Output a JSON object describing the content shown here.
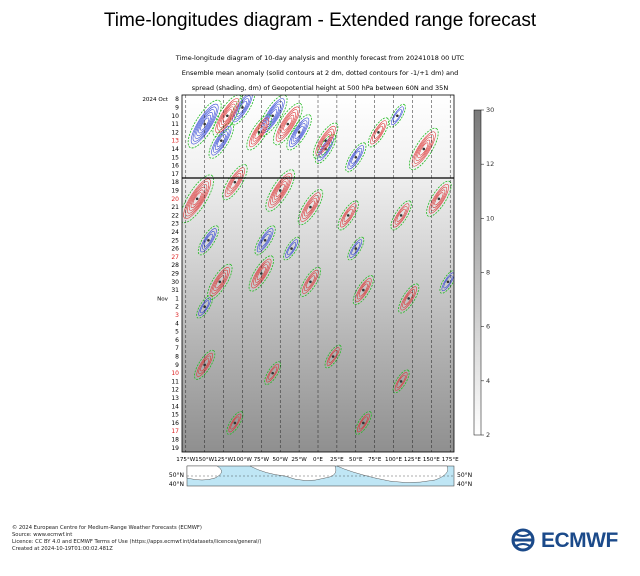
{
  "title": "Time-longitudes diagram - Extended range forecast",
  "subtitle_lines": [
    "Time-longitude diagram of 10-day analysis and monthly forecast from 20241018 00 UTC",
    "Ensemble mean anomaly (solid contours at 2 dm, dotted contours for -1/+1 dm) and",
    "spread (shading, dm) of Geopotential height at 500 hPa between 60N and 35N"
  ],
  "footer_lines": [
    "© 2024 European Centre for Medium-Range Weather Forecasts (ECMWF)",
    "Source: www.ecmwf.int",
    "Licence: CC BY 4.0 and ECMWF Terms of Use (https://apps.ecmwf.int/datasets/licences/general/)",
    "Created at 2024-10-19T01:00:02.481Z"
  ],
  "logo_text": "ECMWF",
  "colors": {
    "positive": "#dd3030",
    "negative": "#2a3fd6",
    "dotted": "#22bb22",
    "analysis_line": "#000000",
    "sunday": "#dd2020",
    "ocean": "#bfe6f5"
  },
  "chart_data": {
    "type": "heatmap",
    "x_ticks": [
      "175°W",
      "150°W",
      "125°W",
      "100°W",
      "75°W",
      "50°W",
      "25°W",
      "0°E",
      "25°E",
      "50°E",
      "75°E",
      "100°E",
      "125°E",
      "150°E",
      "175°E"
    ],
    "x_values": [
      -175,
      -150,
      -125,
      -100,
      -75,
      -50,
      -25,
      0,
      25,
      50,
      75,
      100,
      125,
      150,
      175
    ],
    "y_month_labels": [
      {
        "text": "2024 Oct",
        "day": 8
      },
      {
        "text": "Nov",
        "day": 1
      }
    ],
    "y_days": [
      8,
      9,
      10,
      11,
      12,
      13,
      14,
      15,
      16,
      17,
      18,
      19,
      20,
      21,
      22,
      23,
      24,
      25,
      26,
      27,
      28,
      29,
      30,
      31,
      1,
      2,
      3,
      4,
      5,
      6,
      7,
      8,
      9,
      10,
      11,
      12,
      13,
      14,
      15,
      16,
      17,
      18,
      19
    ],
    "y_sunday_days": [
      13,
      20,
      27,
      3,
      10,
      17
    ],
    "analysis_end_index": 10,
    "colorbar": {
      "ticks": [
        30,
        12,
        10,
        8,
        6,
        4,
        2
      ]
    },
    "map_lat_labels": [
      "50°N",
      "40°N"
    ],
    "anomaly_features": [
      {
        "sign": "negative",
        "lon": -150,
        "day_index": 3,
        "strength": 12
      },
      {
        "sign": "negative",
        "lon": -128,
        "day_index": 5,
        "strength": 8
      },
      {
        "sign": "negative",
        "lon": -100,
        "day_index": 1,
        "strength": 8
      },
      {
        "sign": "negative",
        "lon": -60,
        "day_index": 2,
        "strength": 10
      },
      {
        "sign": "negative",
        "lon": -25,
        "day_index": 4,
        "strength": 8
      },
      {
        "sign": "negative",
        "lon": 10,
        "day_index": 6,
        "strength": 6
      },
      {
        "sign": "negative",
        "lon": 50,
        "day_index": 7,
        "strength": 6
      },
      {
        "sign": "negative",
        "lon": 105,
        "day_index": 2,
        "strength": 4
      },
      {
        "sign": "negative",
        "lon": -145,
        "day_index": 17,
        "strength": 6
      },
      {
        "sign": "negative",
        "lon": -70,
        "day_index": 17,
        "strength": 6
      },
      {
        "sign": "negative",
        "lon": -35,
        "day_index": 18,
        "strength": 4
      },
      {
        "sign": "negative",
        "lon": 50,
        "day_index": 18,
        "strength": 4
      },
      {
        "sign": "negative",
        "lon": 172,
        "day_index": 22,
        "strength": 4
      },
      {
        "sign": "negative",
        "lon": -150,
        "day_index": 25,
        "strength": 4
      },
      {
        "sign": "positive",
        "lon": -120,
        "day_index": 2,
        "strength": 10
      },
      {
        "sign": "positive",
        "lon": -78,
        "day_index": 4,
        "strength": 8
      },
      {
        "sign": "positive",
        "lon": -40,
        "day_index": 3,
        "strength": 10
      },
      {
        "sign": "positive",
        "lon": 10,
        "day_index": 5,
        "strength": 8
      },
      {
        "sign": "positive",
        "lon": 80,
        "day_index": 4,
        "strength": 6
      },
      {
        "sign": "positive",
        "lon": 140,
        "day_index": 6,
        "strength": 10
      },
      {
        "sign": "positive",
        "lon": -160,
        "day_index": 12,
        "strength": 12
      },
      {
        "sign": "positive",
        "lon": -110,
        "day_index": 10,
        "strength": 8
      },
      {
        "sign": "positive",
        "lon": -50,
        "day_index": 11,
        "strength": 10
      },
      {
        "sign": "positive",
        "lon": -10,
        "day_index": 13,
        "strength": 8
      },
      {
        "sign": "positive",
        "lon": 40,
        "day_index": 14,
        "strength": 6
      },
      {
        "sign": "positive",
        "lon": 110,
        "day_index": 14,
        "strength": 6
      },
      {
        "sign": "positive",
        "lon": 160,
        "day_index": 12,
        "strength": 8
      },
      {
        "sign": "positive",
        "lon": -130,
        "day_index": 22,
        "strength": 8
      },
      {
        "sign": "positive",
        "lon": -75,
        "day_index": 21,
        "strength": 8
      },
      {
        "sign": "positive",
        "lon": -10,
        "day_index": 22,
        "strength": 6
      },
      {
        "sign": "positive",
        "lon": 60,
        "day_index": 23,
        "strength": 6
      },
      {
        "sign": "positive",
        "lon": 120,
        "day_index": 24,
        "strength": 6
      },
      {
        "sign": "positive",
        "lon": -150,
        "day_index": 32,
        "strength": 6
      },
      {
        "sign": "positive",
        "lon": -60,
        "day_index": 33,
        "strength": 4
      },
      {
        "sign": "positive",
        "lon": 20,
        "day_index": 31,
        "strength": 4
      },
      {
        "sign": "positive",
        "lon": 110,
        "day_index": 34,
        "strength": 4
      },
      {
        "sign": "positive",
        "lon": -110,
        "day_index": 39,
        "strength": 4
      },
      {
        "sign": "positive",
        "lon": 60,
        "day_index": 39,
        "strength": 4
      }
    ]
  }
}
